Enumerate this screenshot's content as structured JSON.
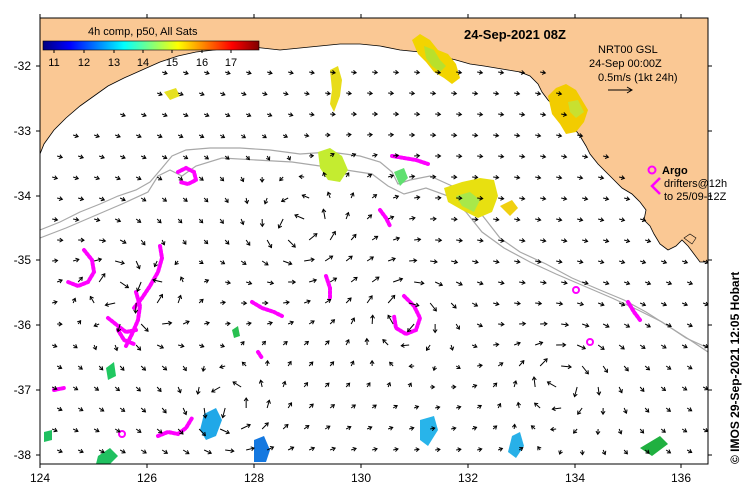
{
  "title": "24-Sep-2021 08Z",
  "colorbar": {
    "label": "4h comp, p50, All Sats",
    "ticks": [
      "11",
      "12",
      "13",
      "14",
      "15",
      "16",
      "17"
    ],
    "range": [
      10.5,
      17.7
    ],
    "colors": [
      "#00007f",
      "#0000ff",
      "#007fff",
      "#00ffff",
      "#7fff7f",
      "#ffff00",
      "#ff7f00",
      "#ff0000",
      "#7f0000"
    ]
  },
  "model_info": {
    "line1": "NRT00 GSL",
    "line2": "24-Sep 00:00Z",
    "scale": "0.5m/s (1kt 24h)"
  },
  "argo_label": "Argo",
  "drifters": {
    "line1": "drifters@12h",
    "line2": "to 25/09-12Z"
  },
  "credit": "© IMOS 29-Sep-2021 12:05 Hobart",
  "axes": {
    "lon_ticks": [
      "124",
      "126",
      "128",
      "130",
      "132",
      "134",
      "136"
    ],
    "lat_ticks": [
      "-32",
      "-33",
      "-34",
      "-35",
      "-36",
      "-37",
      "-38"
    ]
  },
  "colors": {
    "land": "#fac894",
    "isobath": "#a8a8a8",
    "drifter": "#ff00ff",
    "arrow": "#000000"
  }
}
